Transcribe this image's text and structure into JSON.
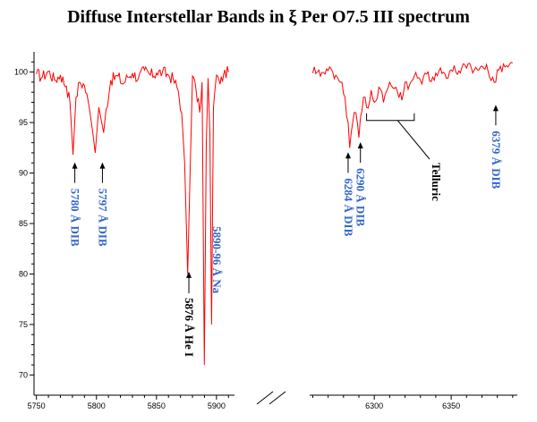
{
  "chart_data": {
    "type": "line",
    "title": "Diffuse Interstellar Bands in ξ Per O7.5 III spectrum",
    "xlabel": "",
    "ylabel": "",
    "ylim": [
      68,
      102
    ],
    "y_ticks": [
      "100",
      "95",
      "90",
      "85",
      "80",
      "75",
      "70"
    ],
    "grid": false,
    "line_color": "#ff0000",
    "label_color_dib": "#3366cc",
    "label_color_other": "#000000",
    "panels": [
      {
        "xlim": [
          5748,
          5915
        ],
        "x_ticks": [
          "5750",
          "5800",
          "5850",
          "5900"
        ],
        "spectrum": {
          "x": [
            5750,
            5755,
            5760,
            5765,
            5770,
            5775,
            5778,
            5780.5,
            5783,
            5786,
            5790,
            5794,
            5797,
            5799,
            5802,
            5806,
            5808,
            5812,
            5818,
            5822,
            5826,
            5830,
            5835,
            5840,
            5845,
            5850,
            5855,
            5860,
            5864,
            5868,
            5871,
            5873.5,
            5876,
            5878,
            5880,
            5883,
            5886,
            5888,
            5889.9,
            5891.5,
            5893,
            5894.5,
            5895.9,
            5897.5,
            5900,
            5903,
            5906,
            5910
          ],
          "y": [
            99.8,
            99.5,
            100.1,
            99.2,
            99.7,
            98.6,
            97.0,
            91.8,
            97.5,
            99.0,
            98.7,
            96.5,
            94.0,
            92.0,
            96.5,
            94.0,
            96.3,
            99.2,
            99.6,
            98.8,
            99.5,
            99.9,
            99.4,
            100.2,
            99.7,
            99.9,
            100.0,
            99.7,
            99.3,
            98.2,
            96.0,
            91.0,
            80.0,
            90.0,
            99.6,
            98.2,
            96.0,
            99.0,
            71.0,
            93.0,
            99.4,
            94.0,
            75.0,
            96.5,
            99.7,
            98.8,
            99.8,
            100.0
          ]
        },
        "labels": [
          {
            "text": "5780 Å DIB",
            "x": 5782,
            "tip_y": 91.5,
            "color": "dib"
          },
          {
            "text": "5797 Å DIB",
            "x": 5805,
            "tip_y": 91.5,
            "color": "dib"
          },
          {
            "text": "5876 Å He I",
            "x": 5877,
            "tip_y": 80.5,
            "color": "other"
          },
          {
            "text": "5890-96 Å Na",
            "x": 5897,
            "tip_y": null,
            "color": "dib"
          }
        ]
      },
      {
        "xlim": [
          6258,
          6393
        ],
        "x_ticks": [
          "6300",
          "6350"
        ],
        "spectrum": {
          "x": [
            6260,
            6264,
            6268,
            6272,
            6276,
            6279,
            6281,
            6283,
            6284,
            6285,
            6287,
            6289,
            6290,
            6291,
            6293,
            6295,
            6298,
            6300,
            6303,
            6306,
            6310,
            6314,
            6318,
            6320,
            6322,
            6326,
            6330,
            6334,
            6338,
            6342,
            6346,
            6350,
            6355,
            6360,
            6365,
            6370,
            6374,
            6377,
            6379,
            6381,
            6384,
            6387,
            6390
          ],
          "y": [
            99.9,
            100.2,
            99.8,
            100.3,
            99.5,
            99.0,
            97.5,
            95.0,
            92.5,
            94.0,
            96.0,
            95.0,
            93.5,
            95.5,
            97.5,
            96.5,
            98.2,
            97.0,
            98.5,
            97.0,
            99.0,
            98.5,
            97.2,
            99.0,
            98.3,
            99.6,
            99.2,
            99.8,
            99.5,
            100.1,
            99.8,
            100.2,
            100.1,
            100.4,
            100.2,
            100.6,
            100.1,
            99.5,
            99.0,
            100.2,
            100.8,
            100.5,
            100.9
          ]
        },
        "labels": [
          {
            "text": "6284 Å DIB",
            "x": 6283,
            "tip_y": 92.5,
            "color": "dib"
          },
          {
            "text": "6290 Å DIB",
            "x": 6291,
            "tip_y": 93.5,
            "color": "dib"
          },
          {
            "text": "Telluric",
            "x": null,
            "tip_y": null,
            "color": "other"
          },
          {
            "text": "6379 Å DIB",
            "x": 6379,
            "tip_y": 97.2,
            "color": "dib"
          }
        ],
        "telluric_bracket": {
          "x_start": 6295,
          "x_end": 6326,
          "y": 96.8
        }
      }
    ]
  }
}
